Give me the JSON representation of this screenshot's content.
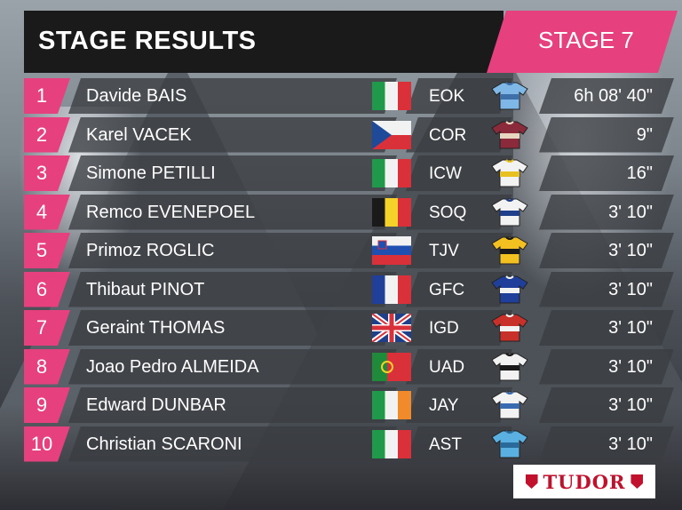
{
  "header": {
    "title": "STAGE RESULTS",
    "stage_label": "STAGE 7"
  },
  "sponsor": {
    "name": "TUDOR",
    "color": "#c0112d"
  },
  "colors": {
    "accent": "#e6407f",
    "bar": "#3a3c40",
    "header_bg": "#1a1a1a"
  },
  "results": [
    {
      "rank": "1",
      "name": "Davide BAIS",
      "flag": "italy-flag",
      "team": "EOK",
      "jersey": "eolo-kometa-jersey",
      "time": "6h 08' 40\""
    },
    {
      "rank": "2",
      "name": "Karel VACEK",
      "flag": "czech-flag",
      "team": "COR",
      "jersey": "corratec-jersey",
      "time": "9\""
    },
    {
      "rank": "3",
      "name": "Simone PETILLI",
      "flag": "italy-flag",
      "team": "ICW",
      "jersey": "intermarche-jersey",
      "time": "16\""
    },
    {
      "rank": "4",
      "name": "Remco EVENEPOEL",
      "flag": "belgium-flag",
      "team": "SOQ",
      "jersey": "soudal-quickstep-jersey",
      "time": "3' 10\""
    },
    {
      "rank": "5",
      "name": "Primoz ROGLIC",
      "flag": "slovenia-flag",
      "team": "TJV",
      "jersey": "jumbo-visma-jersey",
      "time": "3' 10\""
    },
    {
      "rank": "6",
      "name": "Thibaut PINOT",
      "flag": "france-flag",
      "team": "GFC",
      "jersey": "groupama-fdj-jersey",
      "time": "3' 10\""
    },
    {
      "rank": "7",
      "name": "Geraint THOMAS",
      "flag": "uk-flag",
      "team": "IGD",
      "jersey": "ineos-jersey",
      "time": "3' 10\""
    },
    {
      "rank": "8",
      "name": "Joao Pedro ALMEIDA",
      "flag": "portugal-flag",
      "team": "UAD",
      "jersey": "uae-jersey",
      "time": "3' 10\""
    },
    {
      "rank": "9",
      "name": "Edward DUNBAR",
      "flag": "ireland-flag",
      "team": "JAY",
      "jersey": "jayco-jersey",
      "time": "3' 10\""
    },
    {
      "rank": "10",
      "name": "Christian SCARONI",
      "flag": "italy-flag",
      "team": "AST",
      "jersey": "astana-jersey",
      "time": "3' 10\""
    }
  ]
}
